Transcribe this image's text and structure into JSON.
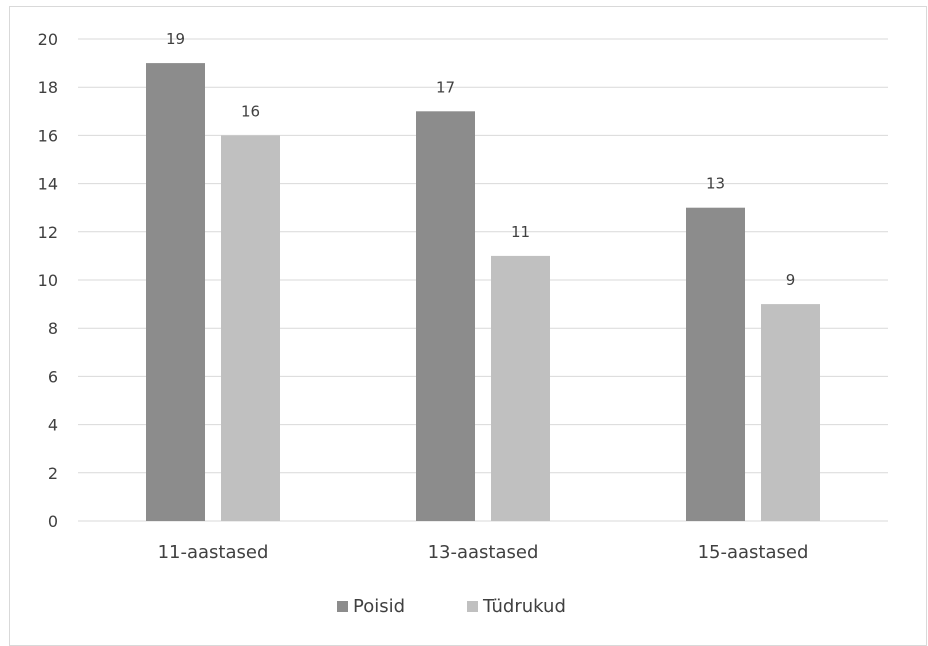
{
  "chart_data": {
    "type": "bar",
    "categories": [
      "11-aastased",
      "13-aastased",
      "15-aastased"
    ],
    "series": [
      {
        "name": "Poisid",
        "values": [
          19,
          17,
          13
        ],
        "color": "#8c8c8c"
      },
      {
        "name": "Tüdrukud",
        "values": [
          16,
          11,
          9
        ],
        "color": "#c0c0c0"
      }
    ],
    "ylim": [
      0,
      20
    ],
    "yticks": [
      0,
      2,
      4,
      6,
      8,
      10,
      12,
      14,
      16,
      18,
      20
    ],
    "grid": true,
    "legend_position": "bottom"
  },
  "colors": {
    "grid": "#d9d9d9",
    "text": "#404040"
  }
}
